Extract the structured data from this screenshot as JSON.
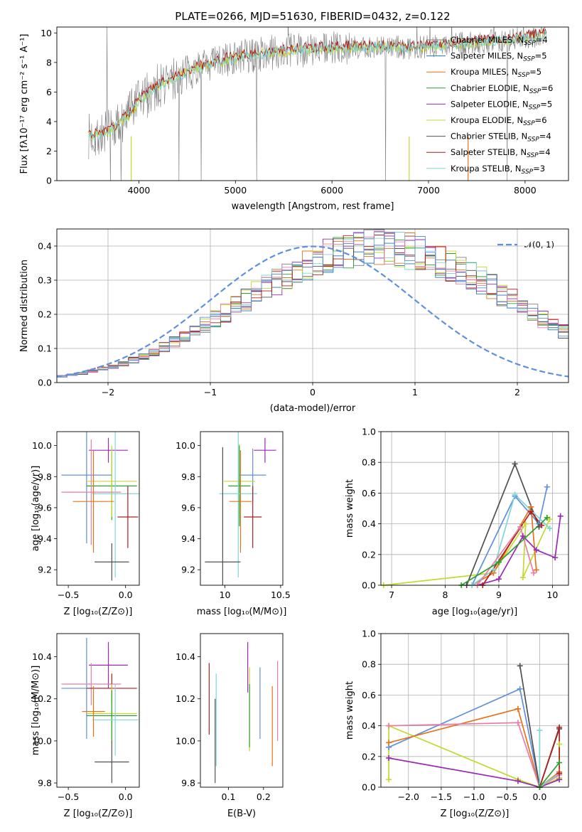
{
  "figure_title": "PLATE=0266, MJD=51630, FIBERID=0432, z=0.122",
  "colors": {
    "Chabrier MILES": "#7f7f7f",
    "Salpeter MILES": "#1f77b4",
    "Kroupa MILES": "#e5731b",
    "Chabrier ELODIE": "#2ca02c",
    "Salpeter ELODIE": "#9a2ab0",
    "Kroupa ELODIE": "#c5d92c",
    "Chabrier STELIB": "#505050",
    "Salpeter STELIB": "#b21d1d",
    "Kroupa STELIB": "#7fd6d6",
    "extra_blue": "#5f8fdf",
    "extra_pink": "#e87ea6",
    "extra_olive": "#aebd43",
    "gaussian": "#5f8fdf"
  },
  "chart_data": [
    {
      "type": "line",
      "panel": "spectrum",
      "title": "PLATE=0266, MJD=51630, FIBERID=0432, z=0.122",
      "xlabel": "wavelength [Angstrom, rest frame]",
      "ylabel": "Flux [fλ10⁻¹⁷ erg cm⁻² s⁻¹ A⁻¹]",
      "xlim": [
        3150,
        8450
      ],
      "ylim": [
        0,
        10.4
      ],
      "xticks": [
        4000,
        5000,
        6000,
        7000,
        8000
      ],
      "yticks": [
        0,
        2,
        4,
        6,
        8,
        10
      ],
      "legend_position": "top-right",
      "legend": [
        {
          "label": "Chabrier MILES, N",
          "sub": "SSP",
          "suffix": "=4",
          "color_key": "Chabrier MILES"
        },
        {
          "label": "Salpeter MILES, N",
          "sub": "SSP",
          "suffix": "=5",
          "color_key": "Salpeter MILES"
        },
        {
          "label": "Kroupa MILES, N",
          "sub": "SSP",
          "suffix": "=5",
          "color_key": "Kroupa MILES"
        },
        {
          "label": "Chabrier ELODIE, N",
          "sub": "SSP",
          "suffix": "=6",
          "color_key": "Chabrier ELODIE"
        },
        {
          "label": "Salpeter ELODIE, N",
          "sub": "SSP",
          "suffix": "=5",
          "color_key": "Salpeter ELODIE"
        },
        {
          "label": "Kroupa ELODIE, N",
          "sub": "SSP",
          "suffix": "=6",
          "color_key": "Kroupa ELODIE"
        },
        {
          "label": "Chabrier STELIB, N",
          "sub": "SSP",
          "suffix": "=4",
          "color_key": "Chabrier STELIB"
        },
        {
          "label": "Salpeter STELIB, N",
          "sub": "SSP",
          "suffix": "=4",
          "color_key": "Salpeter STELIB"
        },
        {
          "label": "Kroupa STELIB, N",
          "sub": "SSP",
          "suffix": "=3",
          "color_key": "Kroupa STELIB"
        }
      ],
      "continuum": {
        "x": [
          3480,
          3600,
          3700,
          3800,
          3900,
          4000,
          4100,
          4200,
          4300,
          4400,
          4600,
          4800,
          5000,
          5200,
          5400,
          5600,
          5800,
          6000,
          6200,
          6400,
          6600,
          6800,
          7000,
          7200,
          7400,
          7600,
          7800,
          8000,
          8200
        ],
        "y": [
          3.0,
          3.1,
          3.3,
          3.8,
          4.5,
          5.3,
          5.9,
          6.4,
          6.7,
          7.0,
          7.6,
          8.0,
          8.3,
          8.5,
          8.7,
          8.8,
          8.9,
          8.95,
          9.0,
          9.05,
          9.05,
          9.0,
          9.05,
          9.2,
          9.3,
          9.4,
          9.5,
          9.7,
          9.9
        ]
      }
    },
    {
      "type": "bar",
      "panel": "residual_histogram",
      "xlabel": "(data-model)/error",
      "ylabel": "Normed distribution",
      "xlim": [
        -2.5,
        2.5
      ],
      "ylim": [
        0,
        0.45
      ],
      "xticks": [
        -2,
        -1,
        0,
        1,
        2
      ],
      "yticks": [
        0.0,
        0.1,
        0.2,
        0.3,
        0.4
      ],
      "grid": true,
      "legend_position": "top-right",
      "reference_curve": {
        "label": "𝒩(0, 1)",
        "mean": 0,
        "sigma": 1
      },
      "bin_edges_start": -2.5,
      "bin_width": 0.1,
      "reference_histogram": [
        0.018,
        0.022,
        0.027,
        0.033,
        0.04,
        0.048,
        0.056,
        0.066,
        0.078,
        0.09,
        0.104,
        0.118,
        0.134,
        0.15,
        0.168,
        0.186,
        0.205,
        0.223,
        0.242,
        0.261,
        0.28,
        0.298,
        0.315,
        0.331,
        0.345,
        0.358,
        0.369,
        0.378,
        0.385,
        0.39,
        0.394,
        0.395,
        0.394,
        0.39,
        0.385,
        0.378,
        0.369,
        0.358,
        0.345,
        0.331,
        0.315,
        0.298,
        0.28,
        0.261,
        0.242,
        0.223,
        0.205,
        0.186,
        0.168,
        0.15
      ]
    },
    {
      "type": "scatter",
      "panel": "age_vs_Z",
      "xlabel": "Z [log₁₀(Z/Z⊙)]",
      "ylabel": "age  [log₁₀(age/yr)]",
      "xlim": [
        -0.6,
        0.12
      ],
      "ylim": [
        9.1,
        10.09
      ],
      "xticks": [
        -0.5,
        0.0
      ],
      "xtick_labels": [
        "−0.5",
        "0.0"
      ],
      "yticks": [
        9.2,
        9.4,
        9.6,
        9.8,
        10.0
      ],
      "points": [
        {
          "x": -0.34,
          "y": 9.81,
          "xerr": 0.22,
          "yerr": 0.44,
          "color_key": "extra_blue"
        },
        {
          "x": -0.15,
          "y": 9.97,
          "xerr": 0.17,
          "yerr": 0.08,
          "color_key": "Salpeter ELODIE"
        },
        {
          "x": -0.12,
          "y": 9.74,
          "xerr": 0.22,
          "yerr": 0.22,
          "color_key": "Chabrier ELODIE"
        },
        {
          "x": -0.12,
          "y": 9.77,
          "xerr": 0.22,
          "yerr": 0.23,
          "color_key": "Kroupa ELODIE"
        },
        {
          "x": -0.3,
          "y": 9.7,
          "xerr": 0.26,
          "yerr": 0.34,
          "color_key": "extra_pink"
        },
        {
          "x": -0.09,
          "y": 9.69,
          "xerr": 0.21,
          "yerr": 0.54,
          "color_key": "Kroupa STELIB"
        },
        {
          "x": -0.28,
          "y": 9.64,
          "xerr": 0.18,
          "yerr": 0.33,
          "color_key": "Kroupa MILES"
        },
        {
          "x": 0.02,
          "y": 9.54,
          "xerr": 0.09,
          "yerr": 0.2,
          "color_key": "Salpeter STELIB"
        },
        {
          "x": -0.12,
          "y": 9.25,
          "xerr": 0.15,
          "yerr": 0.12,
          "color_key": "Chabrier STELIB"
        }
      ]
    },
    {
      "type": "scatter",
      "panel": "age_vs_mass",
      "xlabel": "mass [log₁₀(M/M⊙)]",
      "xlim": [
        9.78,
        10.52
      ],
      "ylim": [
        9.1,
        10.09
      ],
      "xticks": [
        10.0,
        10.5
      ],
      "yticks": [
        9.2,
        9.4,
        9.6,
        9.8,
        10.0
      ],
      "points": [
        {
          "x": 10.25,
          "y": 9.81,
          "xerr": 0.12,
          "yerr": 0.17,
          "color_key": "extra_blue"
        },
        {
          "x": 10.36,
          "y": 9.97,
          "xerr": 0.1,
          "yerr": 0.08,
          "color_key": "Salpeter ELODIE"
        },
        {
          "x": 10.13,
          "y": 9.77,
          "xerr": 0.14,
          "yerr": 0.24,
          "color_key": "Kroupa ELODIE"
        },
        {
          "x": 10.13,
          "y": 9.74,
          "xerr": 0.1,
          "yerr": 0.26,
          "color_key": "Chabrier ELODIE"
        },
        {
          "x": 10.12,
          "y": 9.69,
          "xerr": 0.17,
          "yerr": 0.54,
          "color_key": "Kroupa STELIB"
        },
        {
          "x": 10.14,
          "y": 9.64,
          "xerr": 0.1,
          "yerr": 0.33,
          "color_key": "Kroupa MILES"
        },
        {
          "x": 10.25,
          "y": 9.54,
          "xerr": 0.08,
          "yerr": 0.2,
          "color_key": "Salpeter STELIB"
        },
        {
          "x": 9.98,
          "y": 9.25,
          "xerr": 0.16,
          "yerr": 0.74,
          "color_key": "Chabrier STELIB"
        }
      ]
    },
    {
      "type": "line",
      "panel": "massweight_vs_age",
      "xlabel": "age  [log₁₀(age/yr)]",
      "ylabel": "mass weight",
      "xlim": [
        6.8,
        10.3
      ],
      "ylim": [
        0,
        1.0
      ],
      "xticks": [
        7,
        8,
        9,
        10
      ],
      "yticks": [
        0.0,
        0.2,
        0.4,
        0.6,
        0.8,
        1.0
      ],
      "grid": true,
      "series": [
        {
          "color_key": "Kroupa ELODIE",
          "x": [
            6.85,
            8.9,
            9.5,
            9.45,
            9.95
          ],
          "y": [
            0.0,
            0.08,
            0.4,
            0.05,
            0.43
          ]
        },
        {
          "color_key": "extra_blue",
          "x": [
            8.5,
            9.3,
            9.75,
            9.9
          ],
          "y": [
            0.0,
            0.58,
            0.4,
            0.64
          ]
        },
        {
          "color_key": "Chabrier STELIB",
          "x": [
            8.4,
            9.3,
            9.75
          ],
          "y": [
            0.0,
            0.79,
            0.38
          ]
        },
        {
          "color_key": "Kroupa MILES",
          "x": [
            8.5,
            8.9,
            9.6,
            9.7
          ],
          "y": [
            0.0,
            0.08,
            0.51,
            0.1
          ]
        },
        {
          "color_key": "Salpeter ELODIE",
          "x": [
            8.6,
            9.0,
            9.45,
            9.7,
            10.05,
            10.15
          ],
          "y": [
            0.0,
            0.04,
            0.32,
            0.23,
            0.18,
            0.45
          ]
        },
        {
          "color_key": "Kroupa STELIB",
          "x": [
            8.5,
            8.9,
            9.3,
            9.95
          ],
          "y": [
            0.0,
            0.1,
            0.59,
            0.37
          ]
        },
        {
          "color_key": "Salpeter STELIB",
          "x": [
            8.7,
            9.6,
            9.8
          ],
          "y": [
            0.0,
            0.48,
            0.39
          ]
        },
        {
          "color_key": "extra_pink",
          "x": [
            8.6,
            9.4,
            9.65
          ],
          "y": [
            0.0,
            0.38,
            0.08
          ]
        },
        {
          "color_key": "Chabrier ELODIE",
          "x": [
            8.3,
            9.0,
            9.9
          ],
          "y": [
            0.0,
            0.15,
            0.44
          ]
        }
      ]
    },
    {
      "type": "scatter",
      "panel": "mass_vs_Z",
      "xlabel": "Z [log₁₀(Z/Z⊙)]",
      "ylabel": "mass [log₁₀(M/M⊙)]",
      "xlim": [
        -0.6,
        0.12
      ],
      "ylim": [
        9.78,
        10.51
      ],
      "xticks": [
        -0.5,
        0.0
      ],
      "xtick_labels": [
        "−0.5",
        "0.0"
      ],
      "yticks": [
        9.8,
        10.0,
        10.2,
        10.4
      ],
      "points": [
        {
          "x": -0.15,
          "y": 10.36,
          "xerr": 0.17,
          "yerr": 0.11,
          "color_key": "Salpeter ELODIE"
        },
        {
          "x": -0.34,
          "y": 10.25,
          "xerr": 0.22,
          "yerr": 0.24,
          "color_key": "extra_blue"
        },
        {
          "x": -0.3,
          "y": 10.27,
          "xerr": 0.26,
          "yerr": 0.1,
          "color_key": "extra_pink"
        },
        {
          "x": -0.12,
          "y": 10.25,
          "xerr": 0.22,
          "yerr": 0.07,
          "color_key": "Salpeter STELIB"
        },
        {
          "x": -0.12,
          "y": 10.13,
          "xerr": 0.22,
          "yerr": 0.14,
          "color_key": "Kroupa ELODIE"
        },
        {
          "x": -0.12,
          "y": 10.12,
          "xerr": 0.22,
          "yerr": 0.12,
          "color_key": "Chabrier ELODIE"
        },
        {
          "x": -0.09,
          "y": 10.1,
          "xerr": 0.2,
          "yerr": 0.17,
          "color_key": "Kroupa STELIB"
        },
        {
          "x": -0.28,
          "y": 10.14,
          "xerr": 0.1,
          "yerr": 0.12,
          "color_key": "Kroupa MILES"
        },
        {
          "x": -0.12,
          "y": 9.9,
          "xerr": 0.15,
          "yerr": 0.1,
          "color_key": "Chabrier STELIB"
        }
      ]
    },
    {
      "type": "scatter",
      "panel": "mass_vs_ebv",
      "xlabel": "E(B-V)",
      "xlim": [
        0.02,
        0.255
      ],
      "ylim": [
        9.78,
        10.51
      ],
      "xticks": [
        0.1,
        0.2
      ],
      "yticks": [
        9.8,
        10.0,
        10.2,
        10.4
      ],
      "points": [
        {
          "x": 0.045,
          "y": 10.2,
          "yerr": 0.17,
          "color_key": "Salpeter STELIB"
        },
        {
          "x": 0.062,
          "y": 10.0,
          "yerr": 0.2,
          "color_key": "Chabrier STELIB"
        },
        {
          "x": 0.065,
          "y": 10.1,
          "yerr": 0.22,
          "color_key": "Kroupa STELIB"
        },
        {
          "x": 0.155,
          "y": 10.35,
          "yerr": 0.12,
          "color_key": "Salpeter ELODIE"
        },
        {
          "x": 0.16,
          "y": 10.15,
          "yerr": 0.2,
          "color_key": "Kroupa ELODIE"
        },
        {
          "x": 0.16,
          "y": 10.12,
          "yerr": 0.15,
          "color_key": "Chabrier ELODIE"
        },
        {
          "x": 0.19,
          "y": 10.18,
          "yerr": 0.17,
          "color_key": "extra_blue"
        },
        {
          "x": 0.225,
          "y": 10.07,
          "yerr": 0.19,
          "color_key": "Kroupa MILES"
        },
        {
          "x": 0.24,
          "y": 10.19,
          "yerr": 0.19,
          "color_key": "extra_pink"
        }
      ]
    },
    {
      "type": "line",
      "panel": "massweight_vs_Z",
      "xlabel": "Z [log₁₀(Z/Z⊙)]",
      "ylabel": "mass weight",
      "xlim": [
        -2.42,
        0.44
      ],
      "ylim": [
        0,
        1.0
      ],
      "xticks": [
        -2.0,
        -1.5,
        -1.0,
        -0.5,
        0.0
      ],
      "xtick_labels": [
        "−2.0",
        "−1.5",
        "−1.0",
        "−0.5",
        "0.0"
      ],
      "yticks": [
        0.0,
        0.2,
        0.4,
        0.6,
        0.8,
        1.0
      ],
      "grid": true,
      "series": [
        {
          "color_key": "Kroupa ELODIE",
          "x": [
            -2.3,
            -2.3,
            -0.33,
            0.0,
            0.3,
            0.3
          ],
          "y": [
            0.05,
            0.4,
            0.05,
            0.0,
            0.06,
            0.28
          ]
        },
        {
          "color_key": "extra_blue",
          "x": [
            -2.3,
            -0.3,
            0.0,
            0.3
          ],
          "y": [
            0.26,
            0.64,
            0.0,
            0.09
          ]
        },
        {
          "color_key": "Kroupa MILES",
          "x": [
            -2.3,
            -0.33,
            0.0,
            0.3
          ],
          "y": [
            0.29,
            0.51,
            0.0,
            0.1
          ]
        },
        {
          "color_key": "extra_pink",
          "x": [
            -2.3,
            -0.33,
            0.0,
            0.3
          ],
          "y": [
            0.4,
            0.42,
            0.0,
            0.08
          ]
        },
        {
          "color_key": "Salpeter ELODIE",
          "x": [
            -2.3,
            -0.33,
            0.0,
            0.3
          ],
          "y": [
            0.19,
            0.04,
            0.0,
            0.05
          ]
        },
        {
          "color_key": "Chabrier STELIB",
          "x": [
            -0.3,
            0.0,
            0.3
          ],
          "y": [
            0.79,
            0.0,
            0.38
          ]
        },
        {
          "color_key": "Kroupa STELIB",
          "x": [
            0.0,
            0.0,
            0.3
          ],
          "y": [
            0.37,
            0.0,
            0.09
          ]
        },
        {
          "color_key": "Salpeter STELIB",
          "x": [
            0.0,
            0.3,
            0.3
          ],
          "y": [
            0.0,
            0.39,
            0.09
          ]
        },
        {
          "color_key": "Chabrier ELODIE",
          "x": [
            0.0,
            0.3
          ],
          "y": [
            0.0,
            0.16
          ]
        }
      ]
    }
  ]
}
